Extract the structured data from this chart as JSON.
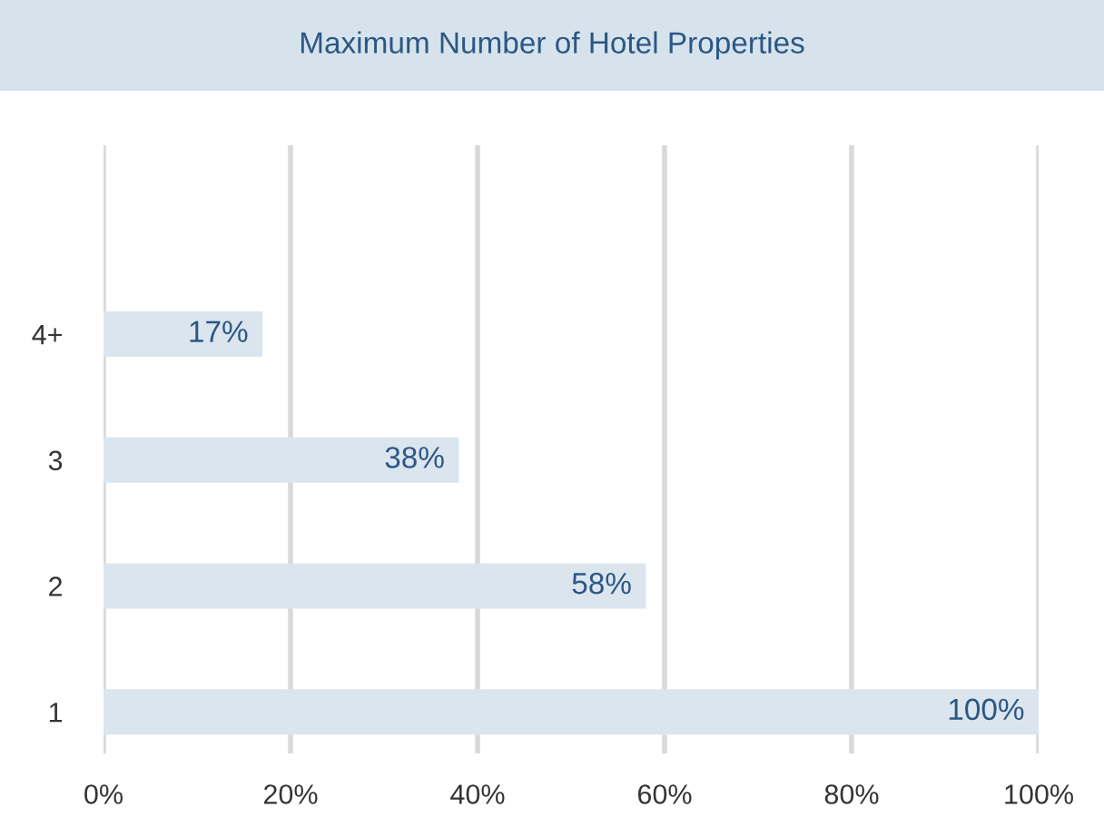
{
  "chart_data": {
    "type": "bar",
    "orientation": "horizontal",
    "title": "Maximum Number of Hotel Properties",
    "categories": [
      "4+",
      "3",
      "2",
      "1"
    ],
    "values": [
      17,
      38,
      58,
      100
    ],
    "value_labels": [
      "17%",
      "38%",
      "58%",
      "100%"
    ],
    "color": "#dbe5ee",
    "xlim": [
      0,
      100
    ],
    "xticks": [
      {
        "value": 0,
        "label": "0%"
      },
      {
        "value": 20,
        "label": "20%"
      },
      {
        "value": 40,
        "label": "40%"
      },
      {
        "value": 60,
        "label": "60%"
      },
      {
        "value": 80,
        "label": "80%"
      },
      {
        "value": 100,
        "label": "100%"
      }
    ],
    "grid": "x",
    "legend": false
  }
}
